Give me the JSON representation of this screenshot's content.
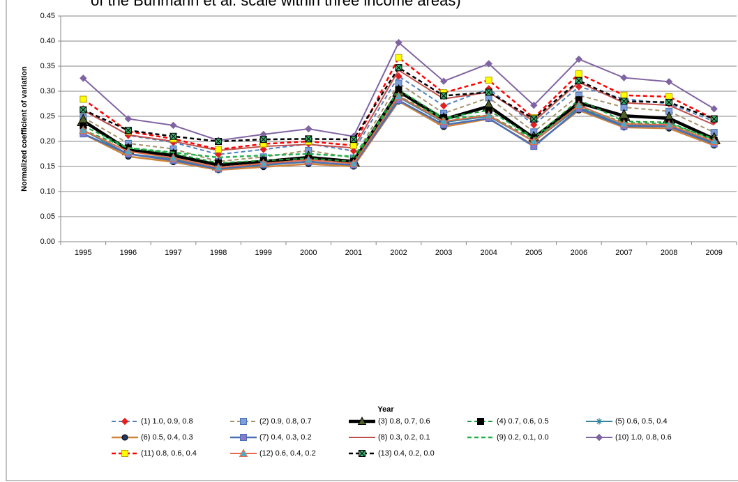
{
  "chart_data": {
    "type": "line",
    "title": "of the Buhmann et al. scale within three income areas)",
    "x_label": "Year",
    "y_label": "Normalized coefficient of variation",
    "categories": [
      "1995",
      "1996",
      "1997",
      "1998",
      "1999",
      "2000",
      "2001",
      "2002",
      "2003",
      "2004",
      "2005",
      "2006",
      "2007",
      "2008",
      "2009"
    ],
    "ylim": [
      0,
      0.45
    ],
    "yticks": [
      {
        "value": 0,
        "label": "0.00"
      },
      {
        "value": 0.05,
        "label": "0.05"
      },
      {
        "value": 0.1,
        "label": "0.10"
      },
      {
        "value": 0.15,
        "label": "0.15"
      },
      {
        "value": 0.2,
        "label": "0.20"
      },
      {
        "value": 0.25,
        "label": "0.25"
      },
      {
        "value": 0.3,
        "label": "0.30"
      },
      {
        "value": 0.35,
        "label": "0.35"
      },
      {
        "value": 0.4,
        "label": "0.40"
      },
      {
        "value": 0.45,
        "label": "0.45"
      }
    ],
    "grid": true,
    "legend": "bottom",
    "series": [
      {
        "name": "(1) 1.0, 0.9, 0.8",
        "color": "#4f81bd",
        "dash": true,
        "width": 2,
        "marker": "diamond",
        "marker_color": "#e02020",
        "values": [
          0.265,
          0.212,
          0.198,
          0.174,
          0.184,
          0.195,
          0.181,
          0.33,
          0.271,
          0.305,
          0.233,
          0.309,
          0.285,
          0.275,
          0.24
        ]
      },
      {
        "name": "(2) 0.9, 0.8, 0.7",
        "color": "#a5946b",
        "dash": true,
        "width": 2,
        "marker": "square",
        "marker_color": "#7f9fd8",
        "values": [
          0.248,
          0.196,
          0.185,
          0.16,
          0.169,
          0.182,
          0.167,
          0.316,
          0.256,
          0.287,
          0.219,
          0.292,
          0.268,
          0.26,
          0.218
        ]
      },
      {
        "name": "(3) 0.8, 0.7, 0.6",
        "color": "#000000",
        "dash": false,
        "width": 4.5,
        "marker": "triangle",
        "marker_color": "#4f6228",
        "values": [
          0.241,
          0.183,
          0.172,
          0.153,
          0.16,
          0.168,
          0.16,
          0.3,
          0.244,
          0.27,
          0.207,
          0.277,
          0.251,
          0.246,
          0.205
        ]
      },
      {
        "name": "(4) 0.7, 0.6, 0.5",
        "color": "#1e9e3a",
        "dash": true,
        "width": 2,
        "marker": "xsquare",
        "marker_color": "#000000",
        "values": [
          0.231,
          0.187,
          0.176,
          0.157,
          0.162,
          0.166,
          0.16,
          0.303,
          0.247,
          0.262,
          0.207,
          0.283,
          0.24,
          0.238,
          0.202
        ]
      },
      {
        "name": "(5) 0.6, 0.5, 0.4",
        "color": "#31849b",
        "dash": false,
        "width": 2,
        "marker": "star",
        "marker_color": "#31849b",
        "values": [
          0.222,
          0.175,
          0.165,
          0.145,
          0.152,
          0.16,
          0.152,
          0.288,
          0.238,
          0.25,
          0.2,
          0.268,
          0.232,
          0.232,
          0.197
        ]
      },
      {
        "name": "(6) 0.5, 0.4, 0.3",
        "color": "#d0843a",
        "dash": false,
        "width": 2.5,
        "marker": "circle",
        "marker_color": "#1f3864",
        "values": [
          0.215,
          0.17,
          0.159,
          0.143,
          0.149,
          0.155,
          0.15,
          0.28,
          0.229,
          0.245,
          0.192,
          0.262,
          0.228,
          0.226,
          0.192
        ]
      },
      {
        "name": "(7) 0.4, 0.3, 0.2",
        "color": "#4a6fb5",
        "dash": false,
        "width": 2.5,
        "marker": "square",
        "marker_color": "#8a78c8",
        "values": [
          0.215,
          0.175,
          0.162,
          0.145,
          0.154,
          0.159,
          0.153,
          0.282,
          0.233,
          0.246,
          0.19,
          0.265,
          0.23,
          0.23,
          0.195
        ]
      },
      {
        "name": "(8) 0.3, 0.2, 0.1",
        "color": "#c0504d",
        "dash": false,
        "width": 2,
        "marker": "none",
        "marker_color": "#c0504d",
        "values": [
          0.262,
          0.213,
          0.2,
          0.182,
          0.19,
          0.194,
          0.187,
          0.342,
          0.285,
          0.298,
          0.24,
          0.318,
          0.277,
          0.272,
          0.233
        ]
      },
      {
        "name": "(9) 0.2, 0.1, 0.0",
        "color": "#22b14c",
        "dash": true,
        "width": 2.5,
        "marker": "none",
        "marker_color": "#22b14c",
        "values": [
          0.222,
          0.187,
          0.178,
          0.168,
          0.172,
          0.175,
          0.17,
          0.29,
          0.245,
          0.252,
          0.205,
          0.27,
          0.237,
          0.235,
          0.205
        ]
      },
      {
        "name": "(10) 1.0, 0.8, 0.6",
        "color": "#8064a2",
        "dash": false,
        "width": 2,
        "marker": "diamond",
        "marker_color": "#8064a2",
        "values": [
          0.326,
          0.245,
          0.232,
          0.202,
          0.214,
          0.225,
          0.21,
          0.397,
          0.32,
          0.355,
          0.272,
          0.364,
          0.327,
          0.319,
          0.265
        ]
      },
      {
        "name": "(11) 0.8, 0.6, 0.4",
        "color": "#ff0000",
        "dash": true,
        "width": 2.5,
        "marker": "square",
        "marker_color": "#ffff00",
        "values": [
          0.284,
          0.22,
          0.205,
          0.184,
          0.195,
          0.2,
          0.192,
          0.367,
          0.297,
          0.322,
          0.247,
          0.335,
          0.292,
          0.289,
          0.245
        ]
      },
      {
        "name": "(12) 0.6, 0.4, 0.2",
        "color": "#e46c4a",
        "dash": false,
        "width": 2,
        "marker": "triangle",
        "marker_color": "#4bacc6",
        "values": [
          0.222,
          0.18,
          0.167,
          0.148,
          0.156,
          0.163,
          0.156,
          0.29,
          0.24,
          0.252,
          0.2,
          0.272,
          0.235,
          0.233,
          0.2
        ]
      },
      {
        "name": "(13) 0.4, 0.2, 0.0",
        "color": "#000000",
        "dash": true,
        "width": 2.5,
        "marker": "xsquare",
        "marker_color": "#3cb371",
        "values": [
          0.263,
          0.222,
          0.21,
          0.2,
          0.204,
          0.205,
          0.204,
          0.347,
          0.291,
          0.298,
          0.245,
          0.321,
          0.28,
          0.278,
          0.245
        ]
      }
    ]
  }
}
